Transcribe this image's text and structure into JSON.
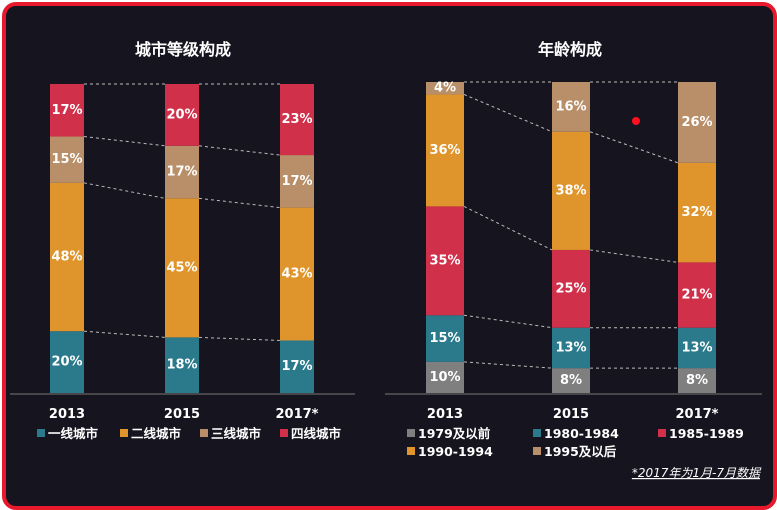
{
  "chart_data": [
    {
      "type": "bar",
      "stacked": true,
      "title": "城市等级构成",
      "categories": [
        "2013",
        "2015",
        "2017*"
      ],
      "series": [
        {
          "name": "一线城市",
          "color": "#2a7a8c",
          "values": [
            20,
            18,
            17
          ]
        },
        {
          "name": "二线城市",
          "color": "#e0952c",
          "values": [
            48,
            45,
            43
          ]
        },
        {
          "name": "三线城市",
          "color": "#b88f68",
          "values": [
            15,
            17,
            17
          ]
        },
        {
          "name": "四线城市",
          "color": "#d1304a",
          "values": [
            17,
            20,
            23
          ]
        }
      ],
      "ylim": [
        0,
        100
      ],
      "legend": "bottom"
    },
    {
      "type": "bar",
      "stacked": true,
      "title": "年龄构成",
      "categories": [
        "2013",
        "2015",
        "2017*"
      ],
      "series": [
        {
          "name": "1979及以前",
          "color": "#7f7f7f",
          "values": [
            10,
            8,
            8
          ]
        },
        {
          "name": "1980-1984",
          "color": "#2a7a8c",
          "values": [
            15,
            13,
            13
          ]
        },
        {
          "name": "1985-1989",
          "color": "#d1304a",
          "values": [
            35,
            25,
            21
          ]
        },
        {
          "name": "1990-1994",
          "color": "#e0952c",
          "values": [
            36,
            38,
            32
          ]
        },
        {
          "name": "1995及以后",
          "color": "#b88f68",
          "values": [
            4,
            16,
            26
          ]
        }
      ],
      "ylim": [
        0,
        100
      ],
      "legend": "bottom"
    }
  ],
  "footnote": "*2017年为1月-7月数据"
}
